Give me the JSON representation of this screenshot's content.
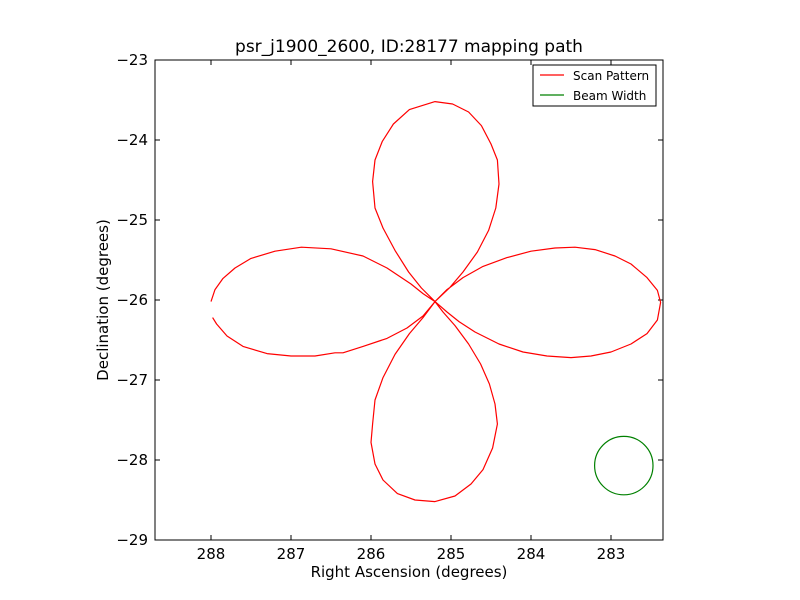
{
  "chart_data": {
    "type": "line",
    "title": "psr_j1900_2600, ID:28177 mapping path",
    "xlabel": "Right Ascension (degrees)",
    "ylabel": "Declination (degrees)",
    "xlim": [
      288.7,
      282.35
    ],
    "ylim": [
      -29,
      -23
    ],
    "xticks": [
      288,
      287,
      286,
      285,
      284,
      283
    ],
    "xtick_labels": [
      "288",
      "287",
      "286",
      "285",
      "284",
      "283"
    ],
    "yticks": [
      -23,
      -24,
      -25,
      -26,
      -27,
      -28,
      -29
    ],
    "ytick_labels": [
      "−23",
      "−24",
      "−25",
      "−26",
      "−27",
      "−28",
      "−29"
    ],
    "grid": false,
    "legend_position": "top-right",
    "series": [
      {
        "name": "Scan Pattern",
        "color": "#ff0000",
        "points": [
          [
            288.0,
            -26.02
          ],
          [
            287.95,
            -25.87
          ],
          [
            287.85,
            -25.73
          ],
          [
            287.7,
            -25.6
          ],
          [
            287.5,
            -25.48
          ],
          [
            287.2,
            -25.39
          ],
          [
            286.87,
            -25.34
          ],
          [
            286.5,
            -25.36
          ],
          [
            286.1,
            -25.45
          ],
          [
            285.8,
            -25.6
          ],
          [
            285.5,
            -25.8
          ],
          [
            285.35,
            -25.92
          ],
          [
            285.2,
            -26.02
          ],
          [
            285.37,
            -25.85
          ],
          [
            285.53,
            -25.65
          ],
          [
            285.7,
            -25.38
          ],
          [
            285.85,
            -25.1
          ],
          [
            285.95,
            -24.85
          ],
          [
            285.98,
            -24.52
          ],
          [
            285.95,
            -24.25
          ],
          [
            285.86,
            -24.02
          ],
          [
            285.72,
            -23.8
          ],
          [
            285.52,
            -23.62
          ],
          [
            285.2,
            -23.52
          ],
          [
            284.98,
            -23.55
          ],
          [
            284.78,
            -23.65
          ],
          [
            284.62,
            -23.82
          ],
          [
            284.5,
            -24.05
          ],
          [
            284.42,
            -24.25
          ],
          [
            284.4,
            -24.55
          ],
          [
            284.44,
            -24.85
          ],
          [
            284.53,
            -25.13
          ],
          [
            284.67,
            -25.4
          ],
          [
            284.85,
            -25.65
          ],
          [
            285.02,
            -25.85
          ],
          [
            285.2,
            -26.02
          ],
          [
            285.05,
            -25.87
          ],
          [
            284.85,
            -25.72
          ],
          [
            284.6,
            -25.58
          ],
          [
            284.3,
            -25.47
          ],
          [
            284.0,
            -25.39
          ],
          [
            283.7,
            -25.35
          ],
          [
            283.45,
            -25.34
          ],
          [
            283.2,
            -25.37
          ],
          [
            282.95,
            -25.45
          ],
          [
            282.75,
            -25.55
          ],
          [
            282.55,
            -25.72
          ],
          [
            282.42,
            -25.88
          ],
          [
            282.38,
            -26.03
          ],
          [
            282.42,
            -26.25
          ],
          [
            282.55,
            -26.42
          ],
          [
            282.75,
            -26.55
          ],
          [
            283.0,
            -26.65
          ],
          [
            283.25,
            -26.7
          ],
          [
            283.5,
            -26.72
          ],
          [
            283.8,
            -26.7
          ],
          [
            284.1,
            -26.65
          ],
          [
            284.4,
            -26.55
          ],
          [
            284.7,
            -26.4
          ],
          [
            284.9,
            -26.27
          ],
          [
            285.05,
            -26.15
          ],
          [
            285.2,
            -26.02
          ],
          [
            285.35,
            -26.22
          ],
          [
            285.52,
            -26.42
          ],
          [
            285.7,
            -26.68
          ],
          [
            285.85,
            -26.97
          ],
          [
            285.95,
            -27.25
          ],
          [
            285.98,
            -27.55
          ],
          [
            286.0,
            -27.78
          ],
          [
            285.95,
            -28.05
          ],
          [
            285.85,
            -28.25
          ],
          [
            285.67,
            -28.42
          ],
          [
            285.45,
            -28.5
          ],
          [
            285.2,
            -28.52
          ],
          [
            284.95,
            -28.45
          ],
          [
            284.75,
            -28.3
          ],
          [
            284.6,
            -28.12
          ],
          [
            284.48,
            -27.85
          ],
          [
            284.42,
            -27.55
          ],
          [
            284.45,
            -27.3
          ],
          [
            284.52,
            -27.05
          ],
          [
            284.63,
            -26.8
          ],
          [
            284.78,
            -26.55
          ],
          [
            284.95,
            -26.32
          ],
          [
            285.1,
            -26.15
          ],
          [
            285.2,
            -26.02
          ],
          [
            285.35,
            -26.2
          ],
          [
            285.55,
            -26.35
          ],
          [
            285.8,
            -26.48
          ],
          [
            286.1,
            -26.58
          ],
          [
            286.35,
            -26.66
          ],
          [
            286.45,
            -26.66
          ],
          [
            286.7,
            -26.7
          ],
          [
            287.0,
            -26.7
          ],
          [
            287.3,
            -26.67
          ],
          [
            287.6,
            -26.58
          ],
          [
            287.8,
            -26.45
          ],
          [
            287.93,
            -26.3
          ],
          [
            287.98,
            -26.22
          ]
        ]
      },
      {
        "name": "Beam Width",
        "color": "#008000",
        "shape": "circle",
        "center": [
          282.84,
          -28.07
        ],
        "radius": 0.365
      }
    ]
  }
}
